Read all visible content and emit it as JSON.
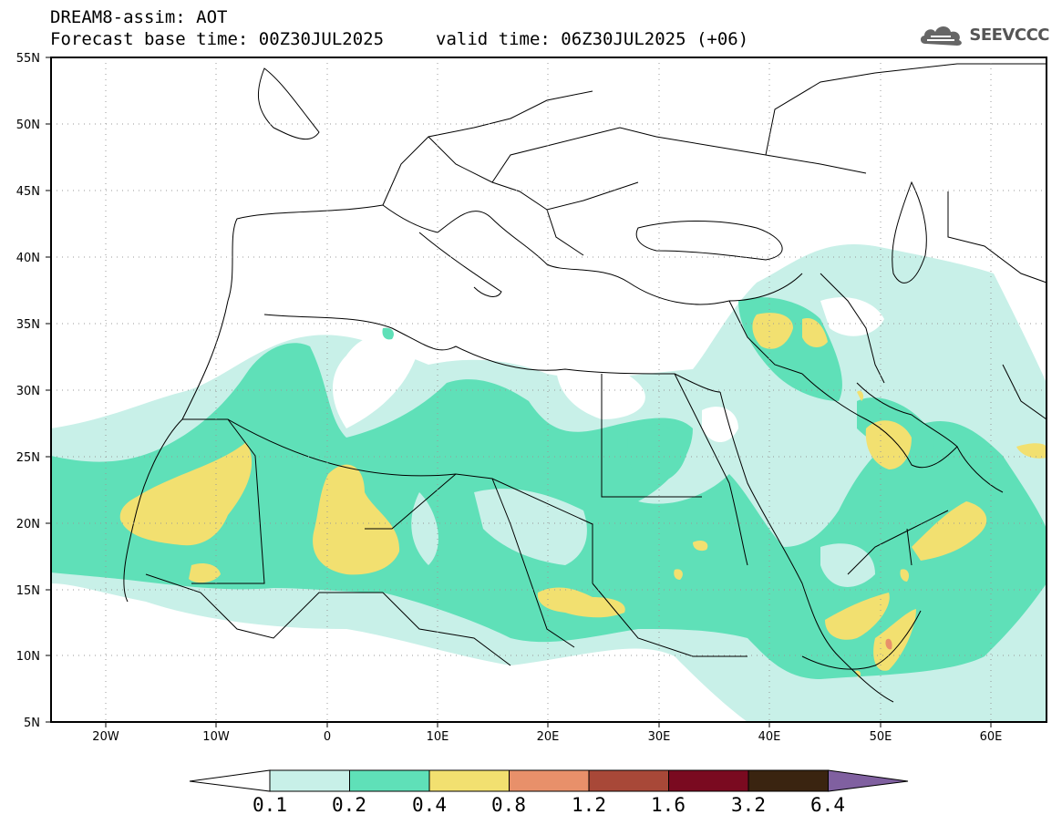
{
  "header": {
    "title": "DREAM8-assim: AOT",
    "base_time": "Forecast base time: 00Z30JUL2025",
    "valid_time": "valid time: 06Z30JUL2025 (+06)"
  },
  "logo": {
    "text": "SEEVCCC",
    "icon": "cloud-logo-icon"
  },
  "axes": {
    "lat_labels": [
      "55N",
      "50N",
      "45N",
      "40N",
      "35N",
      "30N",
      "25N",
      "20N",
      "15N",
      "10N",
      "5N"
    ],
    "lon_labels": [
      "20W",
      "10W",
      "0",
      "10E",
      "20E",
      "30E",
      "40E",
      "50E",
      "60E"
    ]
  },
  "colorbar": {
    "labels": [
      "0.1",
      "0.2",
      "0.4",
      "0.8",
      "1.2",
      "1.6",
      "3.2",
      "6.4"
    ],
    "colors": [
      "#c8f0e8",
      "#5fe0b8",
      "#f2e070",
      "#e8906a",
      "#a84838",
      "#7a0a20",
      "#3a2410",
      "#8060a0"
    ]
  }
}
